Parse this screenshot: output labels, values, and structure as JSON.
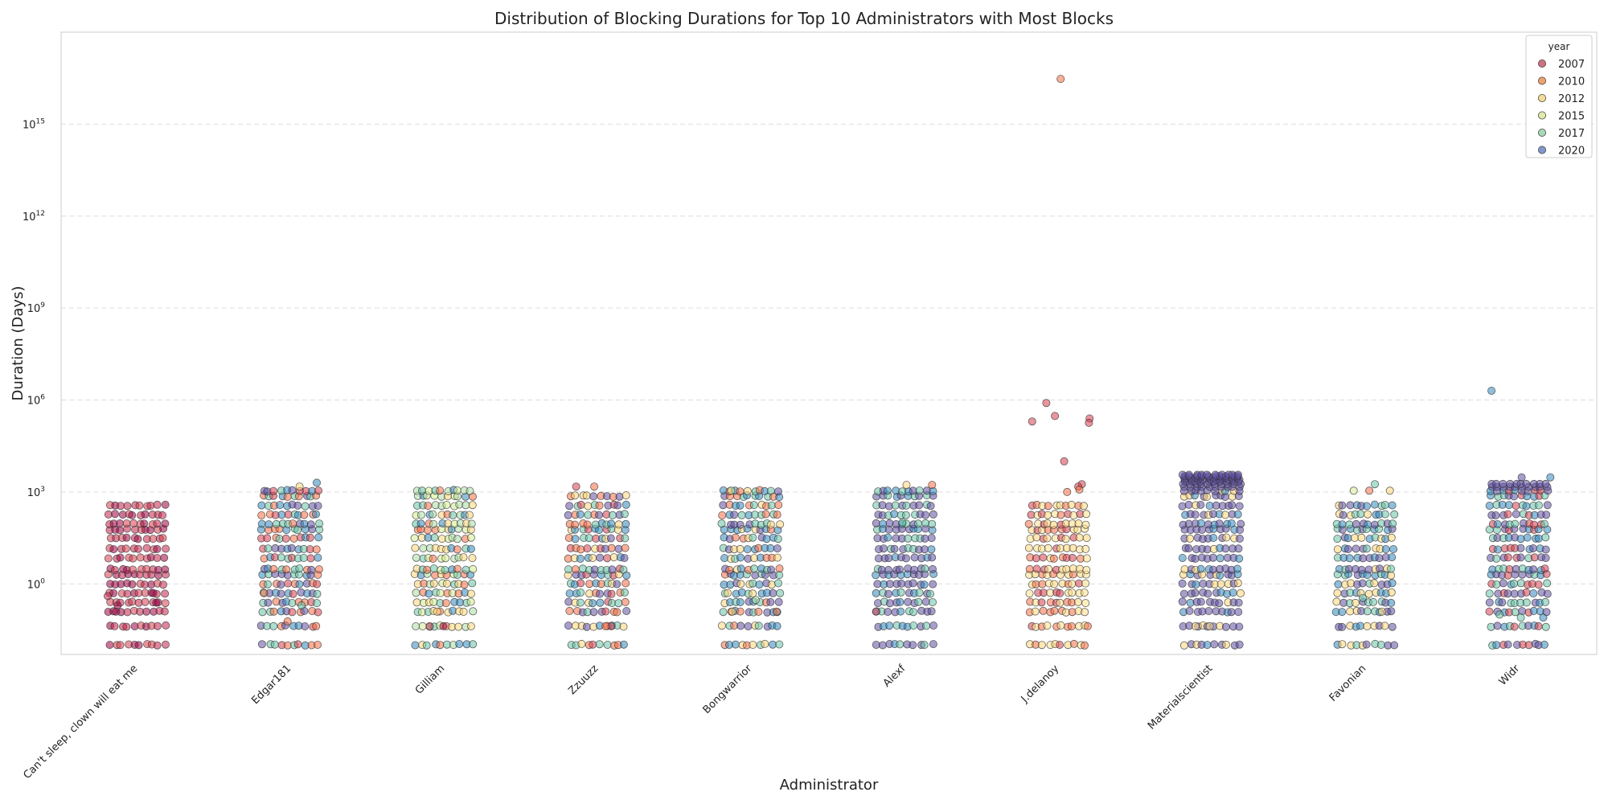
{
  "chart_data": {
    "type": "scatter",
    "title": "Distribution of Blocking Durations for Top 10 Administrators with Most Blocks",
    "xlabel": "Administrator",
    "ylabel": "Duration (Days)",
    "yscale": "log",
    "ylim": [
      0.005,
      1e+18
    ],
    "yticks": [
      {
        "value": 1,
        "base": "10",
        "exp": "0"
      },
      {
        "value": 1000,
        "base": "10",
        "exp": "3"
      },
      {
        "value": 1000000,
        "base": "10",
        "exp": "6"
      },
      {
        "value": 1000000000,
        "base": "10",
        "exp": "9"
      },
      {
        "value": 1000000000000,
        "base": "10",
        "exp": "12"
      },
      {
        "value": 1000000000000000,
        "base": "10",
        "exp": "15"
      }
    ],
    "grid": "y-dashed",
    "categories": [
      "Can't sleep, clown will eat me",
      "Edgar181",
      "Gilliam",
      "Zzuuzz",
      "Bongwarrior",
      "Alexf",
      "J.delanoy",
      "Materialscientist",
      "Favonian",
      "Widr"
    ],
    "legend": {
      "title": "year",
      "placement": "top-right",
      "entries": [
        "2007",
        "2010",
        "2012",
        "2015",
        "2017",
        "2020"
      ]
    },
    "year_colors": {
      "2007": "#9e0142",
      "2010": "#f46d43",
      "2012": "#fdd576",
      "2015": "#d4ec8f",
      "2017": "#66c2a5",
      "2020": "#5e4fa2"
    },
    "legend_colors": [
      "#d0707f",
      "#f0a070",
      "#f5dc96",
      "#e0eaa8",
      "#a9d8b6",
      "#8098cc"
    ],
    "duration_levels": [
      0.0104,
      0.0417,
      0.125,
      0.25,
      0.5,
      1,
      2,
      3,
      7,
      14,
      31,
      60,
      90,
      182,
      365,
      730,
      1095
    ],
    "administrators": [
      {
        "name": "Can't sleep, clown will eat me",
        "max_level": 365,
        "colors": [
          "#9e0142",
          "#c2244a",
          "#d53e4f"
        ],
        "extras": [
          [
            0.125,
            "#9e0142"
          ],
          [
            0.25,
            "#9e0142"
          ],
          [
            0.2,
            "#9e0142"
          ],
          [
            0.4,
            "#c2244a"
          ],
          [
            0.5,
            "#9e0142"
          ]
        ]
      },
      {
        "name": "Edgar181",
        "max_level": 1095,
        "colors": [
          "#3288bd",
          "#66c2a5",
          "#d53e4f",
          "#f46d43",
          "#5e4fa2"
        ],
        "extras": [
          [
            2000,
            "#3288bd"
          ],
          [
            1500,
            "#fdd576"
          ],
          [
            0.06,
            "#f46d43"
          ],
          [
            0.2,
            "#66c2a5"
          ],
          [
            0.5,
            "#f46d43"
          ]
        ]
      },
      {
        "name": "Gilliam",
        "max_level": 1095,
        "colors": [
          "#fdd576",
          "#d4ec8f",
          "#3288bd",
          "#66c2a5",
          "#abdda4",
          "#f46d43"
        ],
        "extras": [
          [
            0.0417,
            "#9e0142"
          ],
          [
            0.0417,
            "#d53e4f"
          ],
          [
            0.125,
            "#fdd576"
          ]
        ]
      },
      {
        "name": "Zzuuzz",
        "max_level": 730,
        "colors": [
          "#5e4fa2",
          "#66c2a5",
          "#f46d43",
          "#d53e4f",
          "#3288bd",
          "#fdd576"
        ],
        "extras": [
          [
            1500,
            "#d53e4f"
          ],
          [
            1500,
            "#f46d43"
          ],
          [
            0.0417,
            "#d53e4f"
          ],
          [
            0.0417,
            "#f46d43"
          ]
        ]
      },
      {
        "name": "Bongwarrior",
        "max_level": 1095,
        "colors": [
          "#5e4fa2",
          "#66c2a5",
          "#fdd576",
          "#3288bd",
          "#f46d43"
        ],
        "extras": [
          [
            1100,
            "#d4ec8f"
          ],
          [
            0.125,
            "#f46d43"
          ],
          [
            0.125,
            "#fdd576"
          ],
          [
            0.3,
            "#abdda4"
          ]
        ]
      },
      {
        "name": "Alexf",
        "max_level": 1095,
        "colors": [
          "#5e4fa2",
          "#3288bd",
          "#66c2a5",
          "#5e4fa2"
        ],
        "extras": [
          [
            1700,
            "#f46d43"
          ],
          [
            1700,
            "#fdd576"
          ],
          [
            0.125,
            "#d53e4f"
          ],
          [
            100,
            "#66c2a5"
          ]
        ]
      },
      {
        "name": "J.delanoy",
        "max_level": 365,
        "colors": [
          "#f46d43",
          "#fdd576",
          "#d53e4f",
          "#fee08b"
        ],
        "extras": [
          [
            3e+16,
            "#f46d43"
          ],
          [
            800000,
            "#d53e4f"
          ],
          [
            300000,
            "#d53e4f"
          ],
          [
            250000,
            "#d53e4f"
          ],
          [
            200000,
            "#d53e4f"
          ],
          [
            180000,
            "#d53e4f"
          ],
          [
            10000,
            "#d53e4f"
          ],
          [
            1800,
            "#d53e4f"
          ],
          [
            1500,
            "#d53e4f"
          ],
          [
            1200,
            "#f46d43"
          ],
          [
            1000,
            "#f46d43"
          ],
          [
            0.0417,
            "#f46d43"
          ]
        ]
      },
      {
        "name": "Materialscientist",
        "max_level": 3650,
        "colors": [
          "#5e4fa2",
          "#5e4fa2",
          "#3288bd",
          "#fdd576",
          "#5e4fa2"
        ],
        "extras": [
          [
            0.0417,
            "#fdd576"
          ],
          [
            0.0417,
            "#fee08b"
          ]
        ]
      },
      {
        "name": "Favonian",
        "max_level": 365,
        "colors": [
          "#5e4fa2",
          "#3288bd",
          "#66c2a5",
          "#fdd576"
        ],
        "extras": [
          [
            1100,
            "#f46d43"
          ],
          [
            1100,
            "#fdd576"
          ],
          [
            1800,
            "#66c2a5"
          ],
          [
            1100,
            "#d4ec8f"
          ],
          [
            0.125,
            "#fdd576"
          ],
          [
            0.35,
            "#66c2a5"
          ]
        ]
      },
      {
        "name": "Widr",
        "max_level": 2000,
        "colors": [
          "#5e4fa2",
          "#5e4fa2",
          "#3288bd",
          "#66c2a5",
          "#d53e4f"
        ],
        "extras": [
          [
            2000000,
            "#3288bd"
          ],
          [
            3000,
            "#5e4fa2"
          ],
          [
            3000,
            "#3288bd"
          ],
          [
            0.08,
            "#3288bd"
          ],
          [
            0.08,
            "#66c2a5"
          ],
          [
            0.1,
            "#66c2a5"
          ]
        ]
      }
    ]
  }
}
